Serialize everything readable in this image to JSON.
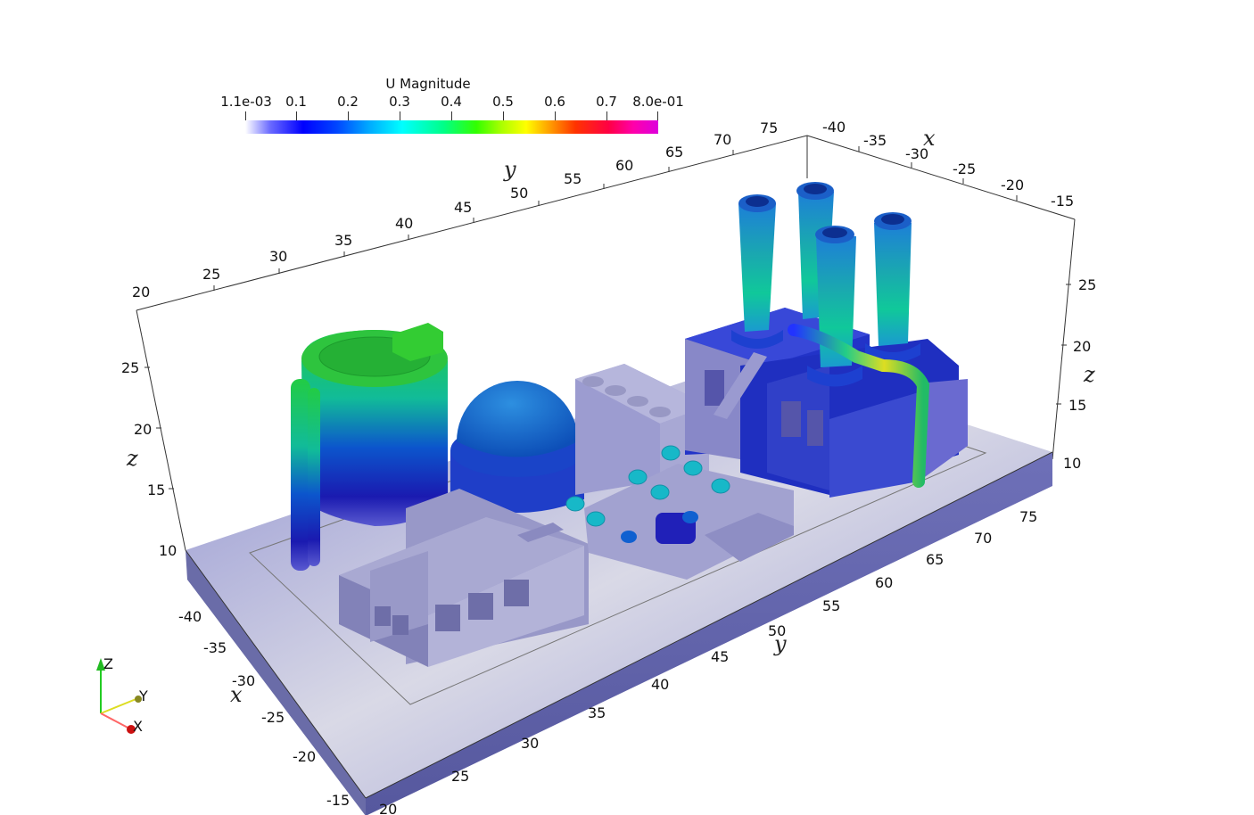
{
  "colorbar": {
    "title": "U Magnitude",
    "ticks": [
      "1.1e-03",
      "0.1",
      "0.2",
      "0.3",
      "0.4",
      "0.5",
      "0.6",
      "0.7",
      "8.0e-01"
    ],
    "range": [
      0.0011,
      0.8
    ]
  },
  "axes": {
    "x_label": "x",
    "y_label": "y",
    "z_label": "z",
    "x_ticks_top": [
      "-40",
      "-35",
      "-30",
      "-25",
      "-20",
      "-15"
    ],
    "y_ticks_top": [
      "20",
      "25",
      "30",
      "35",
      "40",
      "45",
      "50",
      "55",
      "60",
      "65",
      "70",
      "75"
    ],
    "z_ticks_left": [
      "10",
      "15",
      "20",
      "25"
    ],
    "z_ticks_right": [
      "10",
      "15",
      "20",
      "25"
    ],
    "y_ticks_bottom": [
      "20",
      "25",
      "30",
      "35",
      "40",
      "45",
      "50",
      "55",
      "60",
      "65",
      "70",
      "75"
    ],
    "x_ticks_left": [
      "-40",
      "-35",
      "-30",
      "-25",
      "-20",
      "-15"
    ]
  },
  "orientation_widget": {
    "z": "Z",
    "y": "Y",
    "x": "X"
  }
}
